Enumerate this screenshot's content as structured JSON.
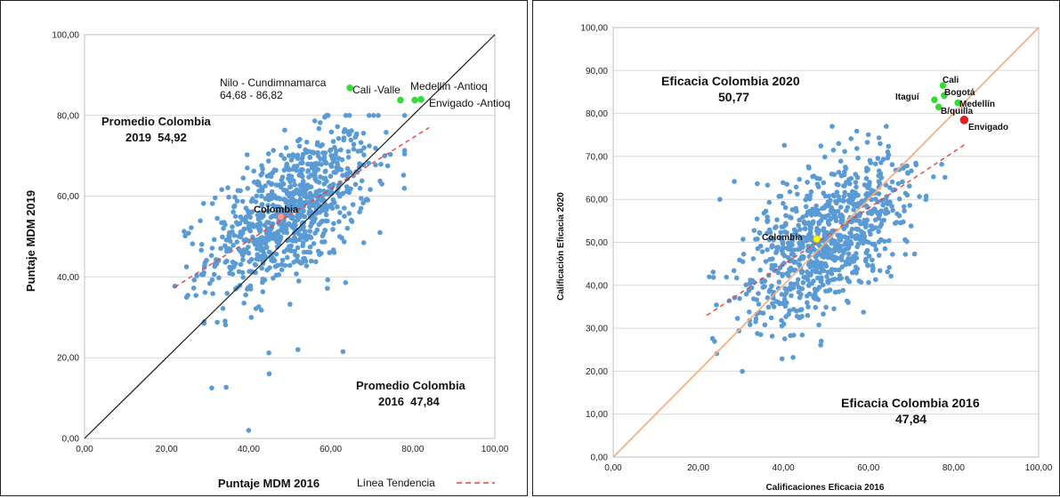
{
  "colors": {
    "point": "#5b9bd5",
    "trend": "#e8433b",
    "diagonal_left": "#1a1a1a",
    "diagonal_right": "#f4b183",
    "highlight_green": "#33dd33",
    "highlight_red": "#e02020",
    "colombia_left": "#f4a0a0",
    "colombia_right": "#ffff00",
    "grid": "#d9d9d9"
  },
  "chart_data": [
    {
      "type": "scatter",
      "xlabel": "Puntaje MDM 2016",
      "ylabel": "Puntaje MDM 2019",
      "xlim": [
        0,
        100
      ],
      "ylim": [
        0,
        100
      ],
      "x_ticks": [
        "0,00",
        "20,00",
        "40,00",
        "60,00",
        "80,00",
        "100,00"
      ],
      "y_ticks": [
        "0,00",
        "20,00",
        "40,00",
        "60,00",
        "80,00",
        "100,00"
      ],
      "grid": "horizontal",
      "legend": {
        "label": "Línea Tendencia",
        "placement": "bottom-right"
      },
      "trend_line": {
        "x": [
          22,
          84
        ],
        "y": [
          37.5,
          77
        ]
      },
      "diagonal": {
        "x": [
          0,
          100
        ],
        "y": [
          0,
          100
        ]
      },
      "cloud": {
        "mean_x": 50,
        "mean_y": 56,
        "spread_x": 10,
        "spread_y": 10,
        "count": 850,
        "x_range": [
          22,
          78
        ],
        "y_range": [
          12,
          80
        ]
      },
      "outliers": [
        {
          "x": 40,
          "y": 2
        },
        {
          "x": 31,
          "y": 12.5
        },
        {
          "x": 45,
          "y": 16
        },
        {
          "x": 63,
          "y": 21.5
        },
        {
          "x": 72,
          "y": 51
        },
        {
          "x": 52,
          "y": 22
        }
      ],
      "highlighted": [
        {
          "x": 64.68,
          "y": 86.82,
          "color": "green",
          "label": "Nilo - Cundimnamarca"
        },
        {
          "x": 77,
          "y": 83.8,
          "color": "green",
          "label": "Cali -Valle"
        },
        {
          "x": 80.5,
          "y": 83.8,
          "color": "green",
          "label": "Medellín -Antioq"
        },
        {
          "x": 82,
          "y": 84,
          "color": "green",
          "label": "Envigado -Antioq"
        }
      ],
      "colombia": {
        "x": 47.84,
        "y": 54.92,
        "label": "Colombia"
      },
      "annotations": {
        "nilo_values": "64,68 - 86,82",
        "avg_2019_line1": "Promedio Colombia",
        "avg_2019_line2": "2019  54,92",
        "avg_2016_line1": "Promedio Colombia",
        "avg_2016_line2": "2016  47,84"
      }
    },
    {
      "type": "scatter",
      "xlabel": "Calificaciones Eficacia 2016",
      "ylabel": "Calificación Eficacia 2020",
      "xlim": [
        0,
        100
      ],
      "ylim": [
        0,
        100
      ],
      "x_ticks": [
        "0,00",
        "20,00",
        "40,00",
        "60,00",
        "80,00",
        "100,00"
      ],
      "y_ticks": [
        "0,00",
        "10,00",
        "20,00",
        "30,00",
        "40,00",
        "50,00",
        "60,00",
        "70,00",
        "80,00",
        "90,00",
        "100,00"
      ],
      "grid": "horizontal",
      "trend_line": {
        "x": [
          22,
          83
        ],
        "y": [
          33,
          73
        ]
      },
      "diagonal": {
        "x": [
          0,
          100
        ],
        "y": [
          0,
          100
        ]
      },
      "cloud": {
        "mean_x": 50,
        "mean_y": 51,
        "spread_x": 10,
        "spread_y": 10,
        "count": 850,
        "x_range": [
          22,
          78
        ],
        "y_range": [
          17,
          77
        ]
      },
      "outliers": [],
      "highlighted": [
        {
          "x": 77.5,
          "y": 86.5,
          "color": "green",
          "label": "Cali"
        },
        {
          "x": 77.8,
          "y": 84.2,
          "color": "green",
          "label": "Bogotá"
        },
        {
          "x": 75.5,
          "y": 83.2,
          "color": "green",
          "label": "Itaguí"
        },
        {
          "x": 81,
          "y": 82.5,
          "color": "green",
          "label": "Medellín"
        },
        {
          "x": 76.5,
          "y": 81.5,
          "color": "green",
          "label": "B/quilla"
        },
        {
          "x": 82.5,
          "y": 78.5,
          "color": "red",
          "label": "Envigado"
        }
      ],
      "colombia": {
        "x": 47.84,
        "y": 50.77,
        "label": "Colombia"
      },
      "annotations": {
        "ef_2020_line1": "Eficacia Colombia 2020",
        "ef_2020_line2": "50,77",
        "ef_2016_line1": "Eficacia Colombia 2016",
        "ef_2016_line2": "47,84"
      }
    }
  ]
}
